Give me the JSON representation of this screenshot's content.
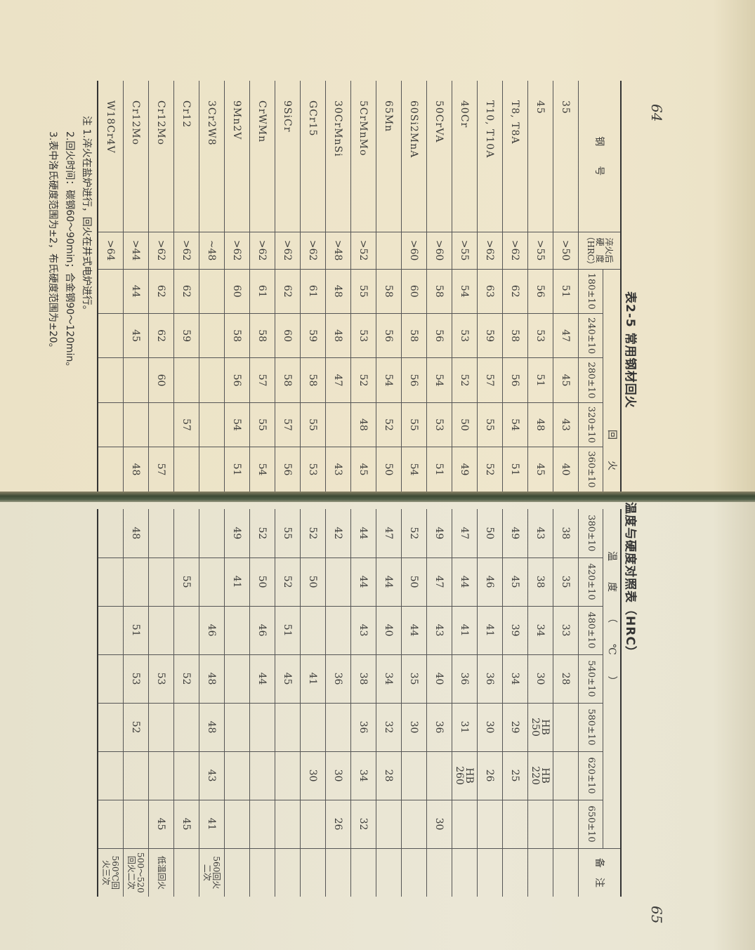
{
  "page_numbers": {
    "left": "64",
    "right": "65"
  },
  "title": {
    "left_part": "表2-5  常用钢材回火",
    "right_part": "温度与硬度对照表（HRC）"
  },
  "header": {
    "steel": "钢　　号",
    "quench": "淬火后\n硬　度\n（HRC）",
    "group_left": "回火",
    "group_right": "温度（℃）",
    "remark": "备　注",
    "temps": [
      "180±10",
      "240±10",
      "280±10",
      "320±10",
      "360±10",
      "380±10",
      "420±10",
      "480±10",
      "540±10",
      "580±10",
      "620±10",
      "650±10"
    ]
  },
  "rows": [
    {
      "steel": "35",
      "quench": ">50",
      "v": [
        "51",
        "47",
        "45",
        "43",
        "40",
        "38",
        "35",
        "33",
        "28",
        "",
        "",
        ""
      ],
      "note": ""
    },
    {
      "steel": "45",
      "quench": ">55",
      "v": [
        "56",
        "53",
        "51",
        "48",
        "45",
        "43",
        "38",
        "34",
        "30",
        "HB\n250",
        "HB\n220",
        ""
      ],
      "note": ""
    },
    {
      "steel": "T8, T8A",
      "quench": ">62",
      "v": [
        "62",
        "58",
        "56",
        "54",
        "51",
        "49",
        "45",
        "39",
        "34",
        "29",
        "25",
        ""
      ],
      "note": ""
    },
    {
      "steel": "T10, T10A",
      "quench": ">62",
      "v": [
        "63",
        "59",
        "57",
        "55",
        "52",
        "50",
        "46",
        "41",
        "36",
        "30",
        "26",
        ""
      ],
      "note": ""
    },
    {
      "steel": "40Cr",
      "quench": ">55",
      "v": [
        "54",
        "53",
        "52",
        "50",
        "49",
        "47",
        "44",
        "41",
        "36",
        "31",
        "HB\n260",
        ""
      ],
      "note": ""
    },
    {
      "steel": "50CrVA",
      "quench": ">60",
      "v": [
        "58",
        "56",
        "54",
        "53",
        "51",
        "49",
        "47",
        "43",
        "40",
        "36",
        "",
        "30"
      ],
      "note": ""
    },
    {
      "steel": "60Si2MnA",
      "quench": ">60",
      "v": [
        "60",
        "58",
        "56",
        "55",
        "54",
        "52",
        "50",
        "44",
        "35",
        "30",
        "",
        ""
      ],
      "note": ""
    },
    {
      "steel": "65Mn",
      "quench": "",
      "v": [
        "58",
        "56",
        "54",
        "52",
        "50",
        "47",
        "44",
        "40",
        "34",
        "32",
        "28",
        ""
      ],
      "note": ""
    },
    {
      "steel": "5CrMnMo",
      "quench": ">52",
      "v": [
        "55",
        "53",
        "52",
        "48",
        "45",
        "44",
        "44",
        "43",
        "38",
        "36",
        "34",
        "32"
      ],
      "note": ""
    },
    {
      "steel": "30CrMnSi",
      "quench": ">48",
      "v": [
        "48",
        "48",
        "47",
        "",
        "43",
        "42",
        "",
        "",
        "36",
        "",
        "30",
        "26"
      ],
      "note": ""
    },
    {
      "steel": "GCr15",
      "quench": ">62",
      "v": [
        "61",
        "59",
        "58",
        "55",
        "53",
        "52",
        "50",
        "",
        "41",
        "",
        "30",
        ""
      ],
      "note": ""
    },
    {
      "steel": "9SiCr",
      "quench": ">62",
      "v": [
        "62",
        "60",
        "58",
        "57",
        "56",
        "55",
        "52",
        "51",
        "45",
        "",
        "",
        ""
      ],
      "note": ""
    },
    {
      "steel": "CrWMn",
      "quench": ">62",
      "v": [
        "61",
        "58",
        "57",
        "55",
        "54",
        "52",
        "50",
        "46",
        "44",
        "",
        "",
        ""
      ],
      "note": ""
    },
    {
      "steel": "9Mn2V",
      "quench": ">62",
      "v": [
        "60",
        "58",
        "56",
        "54",
        "51",
        "49",
        "41",
        "",
        "",
        "",
        "",
        ""
      ],
      "note": ""
    },
    {
      "steel": "3Cr2W8",
      "quench": "~48",
      "v": [
        "",
        "",
        "",
        "",
        "",
        "",
        "",
        "46",
        "48",
        "48",
        "43",
        "41"
      ],
      "note": "560回火\n二次"
    },
    {
      "steel": "Cr12",
      "quench": ">62",
      "v": [
        "62",
        "59",
        "",
        "57",
        "",
        "",
        "55",
        "",
        "52",
        "",
        "",
        "45"
      ],
      "note": ""
    },
    {
      "steel": "Cr12Mo",
      "quench": ">62",
      "v": [
        "62",
        "62",
        "60",
        "",
        "57",
        "",
        "",
        "",
        "53",
        "",
        "",
        "45"
      ],
      "note": "低温回火"
    },
    {
      "steel": "Cr12Mo",
      "quench": ">44",
      "v": [
        "44",
        "45",
        "",
        "",
        "48",
        "48",
        "",
        "51",
        "53",
        "52",
        "",
        ""
      ],
      "note": "500～520\n回火二次"
    },
    {
      "steel": "W18Cr4V",
      "quench": ">64",
      "v": [
        "",
        "",
        "",
        "",
        "",
        "",
        "",
        "",
        "",
        "",
        "",
        ""
      ],
      "note": "560℃回\n火三次"
    }
  ],
  "notes": [
    "注  1.淬火在盐炉进行，回火在井式电炉进行。",
    "2.回火时间：碳钢60～90min；合金钢90～120min。",
    "3.表中洛氏硬度范围为±2，布氏硬度范围为±20。"
  ]
}
